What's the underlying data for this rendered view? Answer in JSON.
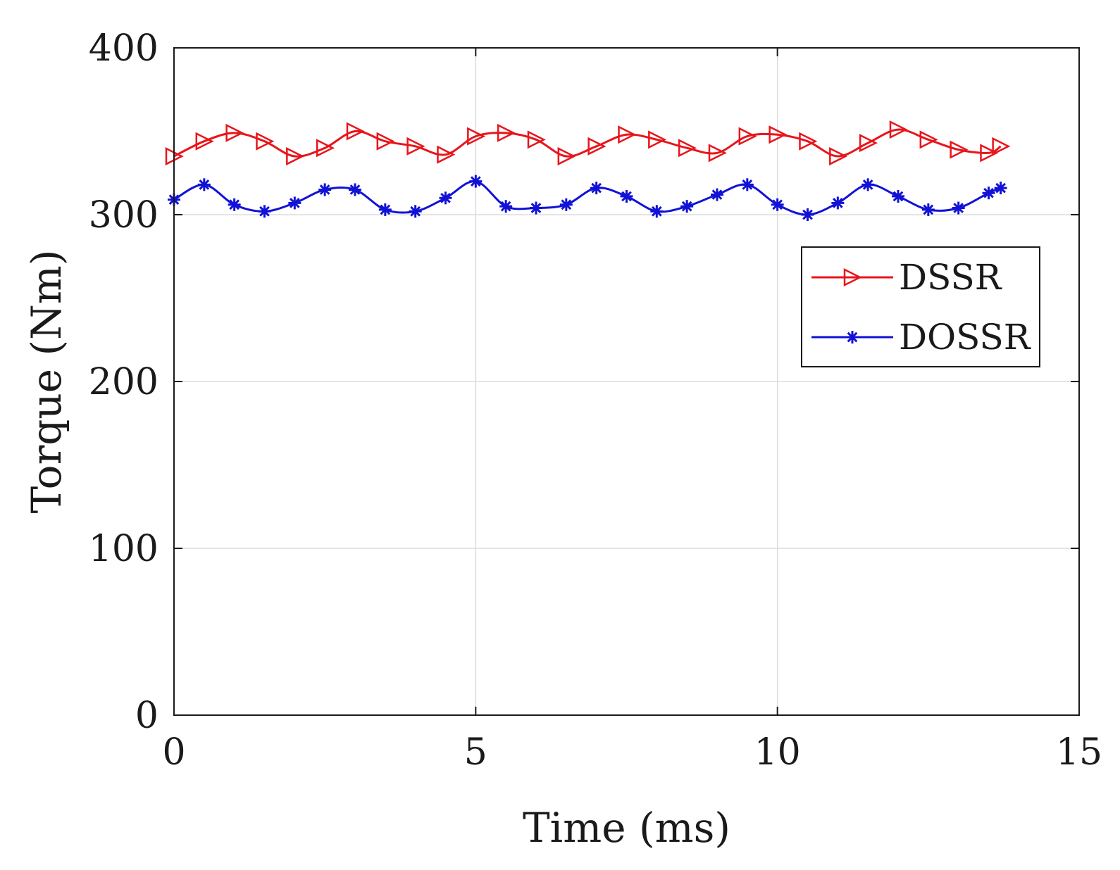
{
  "chart_data": {
    "type": "line",
    "title": "",
    "xlabel": "Time (ms)",
    "ylabel": "Torque (Nm)",
    "xlim": [
      0,
      15
    ],
    "ylim": [
      0,
      400
    ],
    "x_ticks": [
      0,
      5,
      10,
      15
    ],
    "y_ticks": [
      0,
      100,
      200,
      300,
      400
    ],
    "grid": true,
    "legend_position": "right",
    "series": [
      {
        "name": "DSSR",
        "color": "#e8151b",
        "marker": "triangle-right",
        "points": [
          [
            0,
            335
          ],
          [
            0.5,
            344
          ],
          [
            1,
            349
          ],
          [
            1.5,
            344
          ],
          [
            2,
            335
          ],
          [
            2.5,
            340
          ],
          [
            3,
            350
          ],
          [
            3.5,
            344
          ],
          [
            4,
            341
          ],
          [
            4.5,
            336
          ],
          [
            5,
            347
          ],
          [
            5.5,
            349
          ],
          [
            6,
            345
          ],
          [
            6.5,
            335
          ],
          [
            7,
            341
          ],
          [
            7.5,
            348
          ],
          [
            8,
            345
          ],
          [
            8.5,
            340
          ],
          [
            9,
            337
          ],
          [
            9.5,
            347
          ],
          [
            10,
            348
          ],
          [
            10.5,
            344
          ],
          [
            11,
            335
          ],
          [
            11.5,
            343
          ],
          [
            12,
            351
          ],
          [
            12.5,
            345
          ],
          [
            13,
            339
          ],
          [
            13.5,
            337
          ],
          [
            13.7,
            341
          ]
        ]
      },
      {
        "name": "DOSSR",
        "color": "#1212d6",
        "marker": "asterisk",
        "points": [
          [
            0,
            309
          ],
          [
            0.5,
            318
          ],
          [
            1,
            306
          ],
          [
            1.5,
            302
          ],
          [
            2,
            307
          ],
          [
            2.5,
            315
          ],
          [
            3,
            315
          ],
          [
            3.5,
            303
          ],
          [
            4,
            302
          ],
          [
            4.5,
            310
          ],
          [
            5,
            320
          ],
          [
            5.5,
            305
          ],
          [
            6,
            304
          ],
          [
            6.5,
            306
          ],
          [
            7,
            316
          ],
          [
            7.5,
            311
          ],
          [
            8,
            302
          ],
          [
            8.5,
            305
          ],
          [
            9,
            312
          ],
          [
            9.5,
            318
          ],
          [
            10,
            306
          ],
          [
            10.5,
            300
          ],
          [
            11,
            307
          ],
          [
            11.5,
            318
          ],
          [
            12,
            311
          ],
          [
            12.5,
            303
          ],
          [
            13,
            304
          ],
          [
            13.5,
            313
          ],
          [
            13.7,
            316
          ]
        ]
      }
    ]
  }
}
